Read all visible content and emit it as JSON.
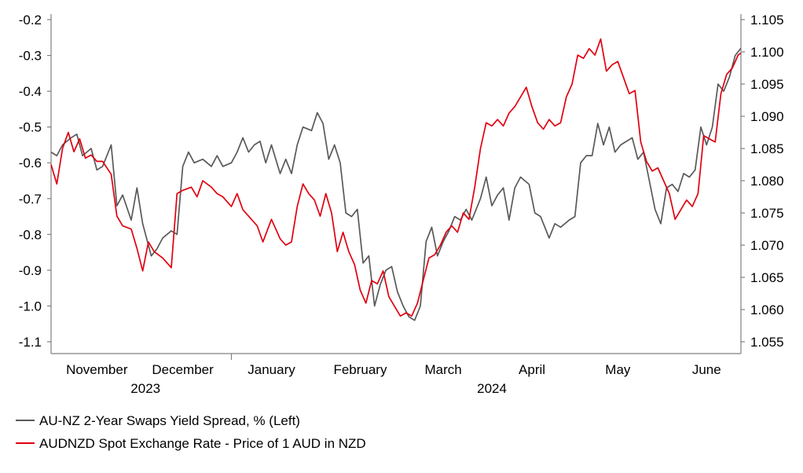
{
  "chart_data": {
    "type": "line",
    "title": "",
    "xlabel": "",
    "ylabel": "",
    "grid": false,
    "legend_position": "bottom-left",
    "x_axis": {
      "start": "2023-10-30",
      "end": "2024-06-27",
      "months": [
        {
          "label": "November",
          "date": "2023-11-15"
        },
        {
          "label": "December",
          "date": "2023-12-15"
        },
        {
          "label": "January",
          "date": "2024-01-15"
        },
        {
          "label": "February",
          "date": "2024-02-15"
        },
        {
          "label": "March",
          "date": "2024-03-15"
        },
        {
          "label": "April",
          "date": "2024-04-15"
        },
        {
          "label": "May",
          "date": "2024-05-15"
        },
        {
          "label": "June",
          "date": "2024-06-15"
        }
      ],
      "year_labels": [
        {
          "label": "2023",
          "date": "2023-12-02"
        },
        {
          "label": "2024",
          "date": "2024-04-01"
        }
      ],
      "year_divider": "2024-01-01"
    },
    "y_left": {
      "min": -1.1,
      "max": -0.2,
      "step": 0.1,
      "tick_labels": [
        "-0.2",
        "-0.3",
        "-0.4",
        "-0.5",
        "-0.6",
        "-0.7",
        "-0.8",
        "-0.9",
        "-1.0",
        "-1.1"
      ]
    },
    "y_right": {
      "min": 1.055,
      "max": 1.105,
      "step": 0.005,
      "tick_labels": [
        "1.105",
        "1.100",
        "1.095",
        "1.090",
        "1.085",
        "1.080",
        "1.075",
        "1.070",
        "1.065",
        "1.060",
        "1.055"
      ]
    },
    "series": [
      {
        "name": "AU-NZ 2-Year Swaps Yield Spread, % (Left)",
        "axis": "left",
        "color": "#595959",
        "points": [
          [
            "2023-10-30",
            -0.57
          ],
          [
            "2023-11-01",
            -0.58
          ],
          [
            "2023-11-03",
            -0.55
          ],
          [
            "2023-11-06",
            -0.53
          ],
          [
            "2023-11-08",
            -0.52
          ],
          [
            "2023-11-10",
            -0.58
          ],
          [
            "2023-11-13",
            -0.56
          ],
          [
            "2023-11-15",
            -0.62
          ],
          [
            "2023-11-17",
            -0.61
          ],
          [
            "2023-11-20",
            -0.55
          ],
          [
            "2023-11-22",
            -0.72
          ],
          [
            "2023-11-24",
            -0.69
          ],
          [
            "2023-11-27",
            -0.76
          ],
          [
            "2023-11-29",
            -0.67
          ],
          [
            "2023-12-01",
            -0.77
          ],
          [
            "2023-12-04",
            -0.86
          ],
          [
            "2023-12-06",
            -0.84
          ],
          [
            "2023-12-08",
            -0.81
          ],
          [
            "2023-12-11",
            -0.79
          ],
          [
            "2023-12-13",
            -0.8
          ],
          [
            "2023-12-15",
            -0.61
          ],
          [
            "2023-12-17",
            -0.57
          ],
          [
            "2023-12-19",
            -0.6
          ],
          [
            "2023-12-22",
            -0.59
          ],
          [
            "2023-12-25",
            -0.61
          ],
          [
            "2023-12-27",
            -0.58
          ],
          [
            "2023-12-29",
            -0.61
          ],
          [
            "2024-01-01",
            -0.6
          ],
          [
            "2024-01-03",
            -0.57
          ],
          [
            "2024-01-05",
            -0.53
          ],
          [
            "2024-01-07",
            -0.57
          ],
          [
            "2024-01-09",
            -0.55
          ],
          [
            "2024-01-11",
            -0.54
          ],
          [
            "2024-01-13",
            -0.6
          ],
          [
            "2024-01-15",
            -0.55
          ],
          [
            "2024-01-18",
            -0.63
          ],
          [
            "2024-01-20",
            -0.59
          ],
          [
            "2024-01-22",
            -0.63
          ],
          [
            "2024-01-24",
            -0.55
          ],
          [
            "2024-01-26",
            -0.5
          ],
          [
            "2024-01-29",
            -0.51
          ],
          [
            "2024-01-31",
            -0.46
          ],
          [
            "2024-02-02",
            -0.49
          ],
          [
            "2024-02-04",
            -0.59
          ],
          [
            "2024-02-06",
            -0.55
          ],
          [
            "2024-02-08",
            -0.6
          ],
          [
            "2024-02-10",
            -0.74
          ],
          [
            "2024-02-12",
            -0.75
          ],
          [
            "2024-02-14",
            -0.73
          ],
          [
            "2024-02-16",
            -0.88
          ],
          [
            "2024-02-18",
            -0.86
          ],
          [
            "2024-02-20",
            -1.0
          ],
          [
            "2024-02-22",
            -0.94
          ],
          [
            "2024-02-24",
            -0.9
          ],
          [
            "2024-02-26",
            -0.89
          ],
          [
            "2024-02-28",
            -0.96
          ],
          [
            "2024-03-01",
            -1.0
          ],
          [
            "2024-03-03",
            -1.03
          ],
          [
            "2024-03-05",
            -1.04
          ],
          [
            "2024-03-07",
            -1.0
          ],
          [
            "2024-03-09",
            -0.82
          ],
          [
            "2024-03-11",
            -0.78
          ],
          [
            "2024-03-13",
            -0.86
          ],
          [
            "2024-03-15",
            -0.82
          ],
          [
            "2024-03-17",
            -0.79
          ],
          [
            "2024-03-19",
            -0.75
          ],
          [
            "2024-03-21",
            -0.76
          ],
          [
            "2024-03-23",
            -0.73
          ],
          [
            "2024-03-25",
            -0.76
          ],
          [
            "2024-03-28",
            -0.7
          ],
          [
            "2024-03-30",
            -0.64
          ],
          [
            "2024-04-01",
            -0.72
          ],
          [
            "2024-04-03",
            -0.69
          ],
          [
            "2024-04-05",
            -0.67
          ],
          [
            "2024-04-07",
            -0.76
          ],
          [
            "2024-04-09",
            -0.67
          ],
          [
            "2024-04-11",
            -0.64
          ],
          [
            "2024-04-14",
            -0.66
          ],
          [
            "2024-04-16",
            -0.74
          ],
          [
            "2024-04-18",
            -0.75
          ],
          [
            "2024-04-21",
            -0.81
          ],
          [
            "2024-04-23",
            -0.77
          ],
          [
            "2024-04-25",
            -0.78
          ],
          [
            "2024-04-28",
            -0.76
          ],
          [
            "2024-04-30",
            -0.75
          ],
          [
            "2024-05-02",
            -0.6
          ],
          [
            "2024-05-04",
            -0.58
          ],
          [
            "2024-05-06",
            -0.58
          ],
          [
            "2024-05-08",
            -0.49
          ],
          [
            "2024-05-10",
            -0.55
          ],
          [
            "2024-05-12",
            -0.5
          ],
          [
            "2024-05-14",
            -0.57
          ],
          [
            "2024-05-16",
            -0.55
          ],
          [
            "2024-05-18",
            -0.54
          ],
          [
            "2024-05-20",
            -0.53
          ],
          [
            "2024-05-22",
            -0.59
          ],
          [
            "2024-05-24",
            -0.57
          ],
          [
            "2024-05-26",
            -0.65
          ],
          [
            "2024-05-28",
            -0.73
          ],
          [
            "2024-05-30",
            -0.77
          ],
          [
            "2024-06-01",
            -0.67
          ],
          [
            "2024-06-03",
            -0.66
          ],
          [
            "2024-06-05",
            -0.68
          ],
          [
            "2024-06-07",
            -0.63
          ],
          [
            "2024-06-09",
            -0.64
          ],
          [
            "2024-06-11",
            -0.62
          ],
          [
            "2024-06-13",
            -0.5
          ],
          [
            "2024-06-15",
            -0.55
          ],
          [
            "2024-06-17",
            -0.5
          ],
          [
            "2024-06-19",
            -0.38
          ],
          [
            "2024-06-21",
            -0.4
          ],
          [
            "2024-06-23",
            -0.36
          ],
          [
            "2024-06-25",
            -0.3
          ],
          [
            "2024-06-27",
            -0.28
          ]
        ]
      },
      {
        "name": "AUDNZD Spot Exchange Rate - Price of 1 AUD in NZD",
        "axis": "right",
        "color": "#e0000f",
        "points": [
          [
            "2023-10-30",
            1.0825
          ],
          [
            "2023-11-01",
            1.0795
          ],
          [
            "2023-11-03",
            1.085
          ],
          [
            "2023-11-05",
            1.0875
          ],
          [
            "2023-11-07",
            1.0845
          ],
          [
            "2023-11-09",
            1.0865
          ],
          [
            "2023-11-11",
            1.0835
          ],
          [
            "2023-11-13",
            1.084
          ],
          [
            "2023-11-15",
            1.083
          ],
          [
            "2023-11-17",
            1.083
          ],
          [
            "2023-11-20",
            1.081
          ],
          [
            "2023-11-22",
            1.0745
          ],
          [
            "2023-11-24",
            1.073
          ],
          [
            "2023-11-27",
            1.0725
          ],
          [
            "2023-11-29",
            1.0695
          ],
          [
            "2023-12-01",
            1.066
          ],
          [
            "2023-12-03",
            1.0705
          ],
          [
            "2023-12-05",
            1.069
          ],
          [
            "2023-12-08",
            1.068
          ],
          [
            "2023-12-11",
            1.0665
          ],
          [
            "2023-12-13",
            1.078
          ],
          [
            "2023-12-15",
            1.0785
          ],
          [
            "2023-12-18",
            1.079
          ],
          [
            "2023-12-20",
            1.0775
          ],
          [
            "2023-12-22",
            1.08
          ],
          [
            "2023-12-25",
            1.079
          ],
          [
            "2023-12-27",
            1.078
          ],
          [
            "2023-12-29",
            1.0775
          ],
          [
            "2024-01-01",
            1.076
          ],
          [
            "2024-01-03",
            1.078
          ],
          [
            "2024-01-05",
            1.0755
          ],
          [
            "2024-01-07",
            1.0745
          ],
          [
            "2024-01-10",
            1.073
          ],
          [
            "2024-01-12",
            1.0705
          ],
          [
            "2024-01-15",
            1.074
          ],
          [
            "2024-01-18",
            1.071
          ],
          [
            "2024-01-20",
            1.07
          ],
          [
            "2024-01-22",
            1.0705
          ],
          [
            "2024-01-24",
            1.076
          ],
          [
            "2024-01-26",
            1.0795
          ],
          [
            "2024-01-28",
            1.078
          ],
          [
            "2024-01-30",
            1.077
          ],
          [
            "2024-02-01",
            1.0745
          ],
          [
            "2024-02-03",
            1.078
          ],
          [
            "2024-02-05",
            1.075
          ],
          [
            "2024-02-07",
            1.069
          ],
          [
            "2024-02-09",
            1.072
          ],
          [
            "2024-02-11",
            1.069
          ],
          [
            "2024-02-13",
            1.067
          ],
          [
            "2024-02-15",
            1.063
          ],
          [
            "2024-02-17",
            1.061
          ],
          [
            "2024-02-19",
            1.0645
          ],
          [
            "2024-02-21",
            1.064
          ],
          [
            "2024-02-23",
            1.066
          ],
          [
            "2024-02-25",
            1.062
          ],
          [
            "2024-02-27",
            1.0605
          ],
          [
            "2024-02-29",
            1.059
          ],
          [
            "2024-03-02",
            1.0595
          ],
          [
            "2024-03-04",
            1.059
          ],
          [
            "2024-03-06",
            1.061
          ],
          [
            "2024-03-08",
            1.0645
          ],
          [
            "2024-03-10",
            1.068
          ],
          [
            "2024-03-12",
            1.0685
          ],
          [
            "2024-03-14",
            1.07
          ],
          [
            "2024-03-16",
            1.072
          ],
          [
            "2024-03-18",
            1.073
          ],
          [
            "2024-03-20",
            1.072
          ],
          [
            "2024-03-22",
            1.075
          ],
          [
            "2024-03-24",
            1.074
          ],
          [
            "2024-03-26",
            1.079
          ],
          [
            "2024-03-28",
            1.085
          ],
          [
            "2024-03-30",
            1.089
          ],
          [
            "2024-04-01",
            1.0885
          ],
          [
            "2024-04-03",
            1.0895
          ],
          [
            "2024-04-05",
            1.0885
          ],
          [
            "2024-04-07",
            1.0905
          ],
          [
            "2024-04-09",
            1.0915
          ],
          [
            "2024-04-11",
            1.093
          ],
          [
            "2024-04-13",
            1.0945
          ],
          [
            "2024-04-15",
            1.0915
          ],
          [
            "2024-04-17",
            1.089
          ],
          [
            "2024-04-19",
            1.088
          ],
          [
            "2024-04-21",
            1.0895
          ],
          [
            "2024-04-23",
            1.0885
          ],
          [
            "2024-04-25",
            1.089
          ],
          [
            "2024-04-27",
            1.093
          ],
          [
            "2024-04-29",
            1.095
          ],
          [
            "2024-05-01",
            1.0995
          ],
          [
            "2024-05-03",
            1.099
          ],
          [
            "2024-05-05",
            1.1005
          ],
          [
            "2024-05-07",
            1.0995
          ],
          [
            "2024-05-09",
            1.102
          ],
          [
            "2024-05-11",
            1.097
          ],
          [
            "2024-05-13",
            1.098
          ],
          [
            "2024-05-15",
            1.0985
          ],
          [
            "2024-05-17",
            1.096
          ],
          [
            "2024-05-19",
            1.0935
          ],
          [
            "2024-05-21",
            1.094
          ],
          [
            "2024-05-23",
            1.086
          ],
          [
            "2024-05-25",
            1.083
          ],
          [
            "2024-05-27",
            1.0815
          ],
          [
            "2024-05-29",
            1.082
          ],
          [
            "2024-05-31",
            1.08
          ],
          [
            "2024-06-02",
            1.078
          ],
          [
            "2024-06-04",
            1.074
          ],
          [
            "2024-06-06",
            1.0755
          ],
          [
            "2024-06-08",
            1.077
          ],
          [
            "2024-06-10",
            1.076
          ],
          [
            "2024-06-12",
            1.078
          ],
          [
            "2024-06-14",
            1.087
          ],
          [
            "2024-06-16",
            1.0865
          ],
          [
            "2024-06-18",
            1.086
          ],
          [
            "2024-06-20",
            1.0935
          ],
          [
            "2024-06-22",
            1.0965
          ],
          [
            "2024-06-24",
            1.0975
          ],
          [
            "2024-06-26",
            1.0995
          ],
          [
            "2024-06-27",
            1.0998
          ]
        ]
      }
    ]
  }
}
